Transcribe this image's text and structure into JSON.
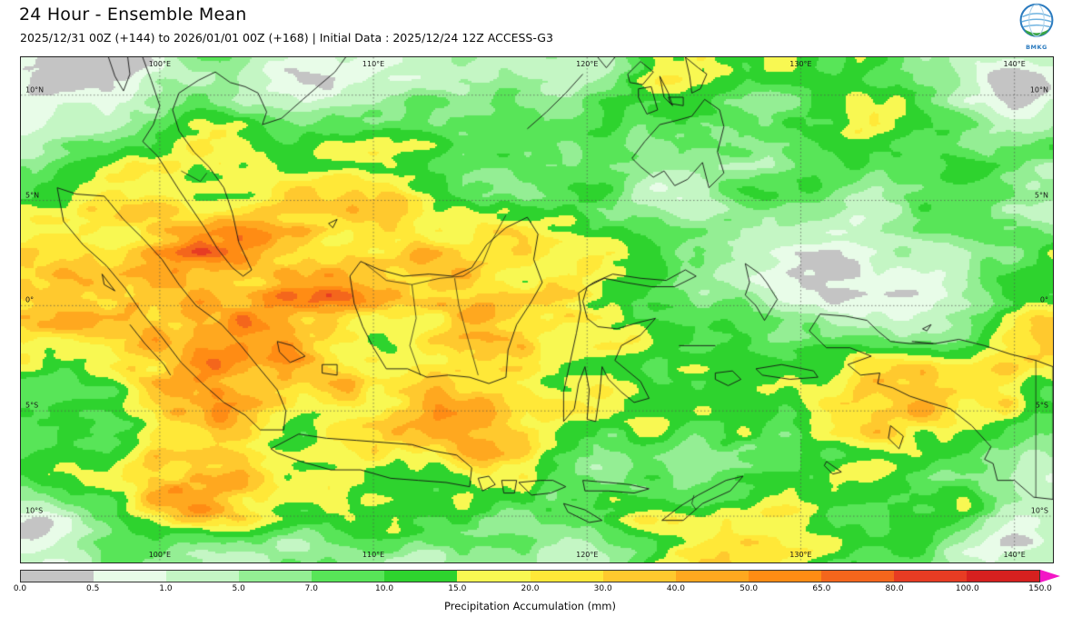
{
  "header": {
    "title": "24 Hour - Ensemble Mean",
    "subtitle": "2025/12/31 00Z (+144) to 2026/01/01 00Z (+168) | Initial Data : 2025/12/24 12Z ACCESS-G3"
  },
  "logo": {
    "label": "BMKG"
  },
  "map": {
    "extent": {
      "lon_min": 93.5,
      "lon_max": 141.8,
      "lat_min": -12.2,
      "lat_max": 11.8
    },
    "lon_ticks": [
      {
        "label": "100°E",
        "lon": 100
      },
      {
        "label": "110°E",
        "lon": 110
      },
      {
        "label": "120°E",
        "lon": 120
      },
      {
        "label": "130°E",
        "lon": 130
      },
      {
        "label": "140°E",
        "lon": 140
      }
    ],
    "lat_ticks": [
      {
        "label": "10°N",
        "lat": 10
      },
      {
        "label": "5°N",
        "lat": 5
      },
      {
        "label": "0°",
        "lat": 0
      },
      {
        "label": "5°S",
        "lat": -5
      },
      {
        "label": "10°S",
        "lat": -10
      }
    ]
  },
  "colorbar": {
    "label": "Precipitation Accumulation (mm)",
    "tick_labels": [
      "0.0",
      "0.5",
      "1.0",
      "5.0",
      "7.0",
      "10.0",
      "15.0",
      "20.0",
      "30.0",
      "40.0",
      "50.0",
      "65.0",
      "80.0",
      "100.0",
      "150.0"
    ],
    "segment_colors": [
      "#c4c4c4",
      "#e8fce8",
      "#c4f6c4",
      "#94ee94",
      "#58e558",
      "#2ed32e",
      "#f8f852",
      "#ffe838",
      "#ffc92e",
      "#ffa81f",
      "#ff8c14",
      "#f4661c",
      "#e73c23",
      "#d6201f"
    ],
    "overflow_arrow_color": "#f316c6"
  },
  "chart_data": {
    "type": "heatmap",
    "title": "24 Hour - Ensemble Mean",
    "subtitle": "2025/12/31 00Z (+144) to 2026/01/01 00Z (+168) | Initial Data : 2025/12/24 12Z ACCESS-G3",
    "variable": "Precipitation Accumulation (mm)",
    "scale_breaks_mm": [
      0.0,
      0.5,
      1.0,
      5.0,
      7.0,
      10.0,
      15.0,
      20.0,
      30.0,
      40.0,
      50.0,
      65.0,
      80.0,
      100.0,
      150.0
    ],
    "scale_colors": [
      "#c4c4c4",
      "#e8fce8",
      "#c4f6c4",
      "#94ee94",
      "#58e558",
      "#2ed32e",
      "#f8f852",
      "#ffe838",
      "#ffc92e",
      "#ffa81f",
      "#ff8c14",
      "#f4661c",
      "#e73c23",
      "#d6201f"
    ],
    "overflow_color": "#f316c6",
    "x_axis": {
      "tick_labels": [
        "100°E",
        "110°E",
        "120°E",
        "130°E",
        "140°E"
      ],
      "ticks_deg": [
        100,
        110,
        120,
        130,
        140
      ]
    },
    "y_axis": {
      "tick_labels": [
        "10°N",
        "5°N",
        "0°",
        "5°S",
        "10°S"
      ],
      "ticks_deg": [
        10,
        5,
        0,
        -5,
        -10
      ]
    },
    "grid": "dotted",
    "legend_position": "bottom"
  }
}
